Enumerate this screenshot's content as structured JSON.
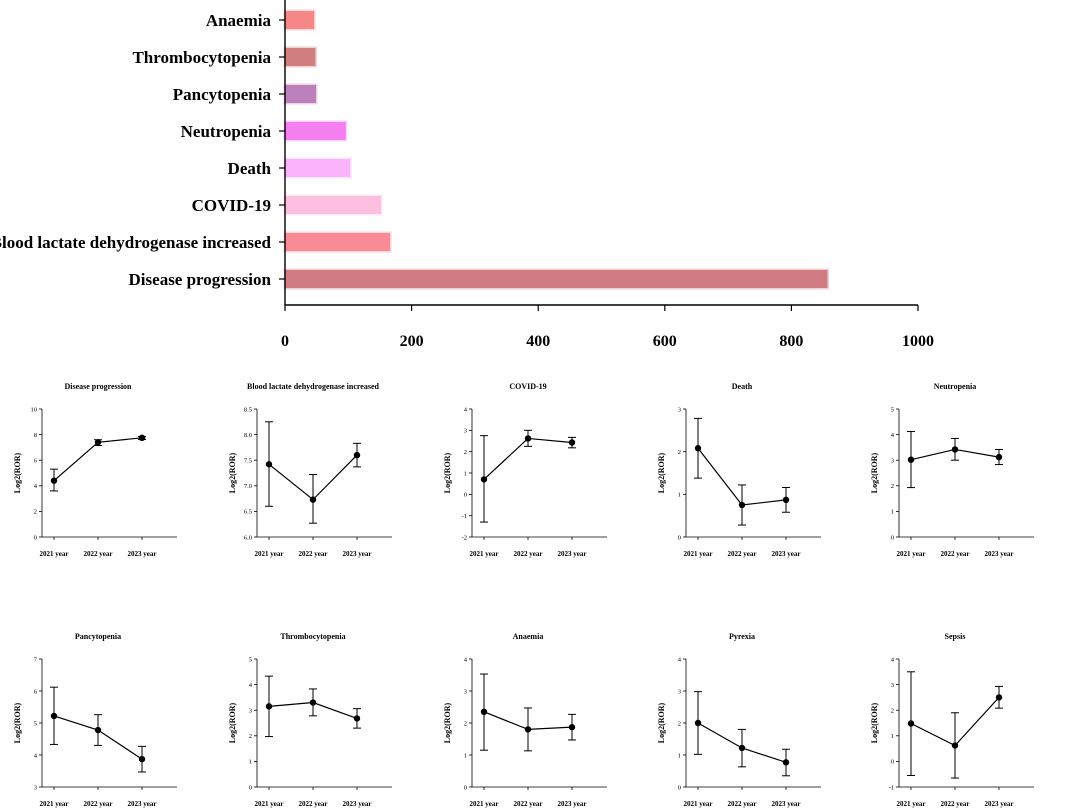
{
  "chart_data": [
    {
      "type": "bar",
      "orientation": "horizontal",
      "title": "",
      "categories": [
        "Anaemia",
        "Thrombocytopenia",
        "Pancytopenia",
        "Neutropenia",
        "Death",
        "COVID-19",
        "Blood lactate dehydrogenase increased",
        "Disease progression"
      ],
      "values": [
        46,
        48,
        49,
        96,
        103,
        152,
        166,
        857
      ],
      "colors": [
        "#f58787",
        "#d27f7f",
        "#bc80bd",
        "#f57ef0",
        "#fbb3fb",
        "#fcbfe0",
        "#f98b96",
        "#d17b82"
      ],
      "xlim": [
        0,
        1000
      ],
      "xticks": [
        "0",
        "200",
        "400",
        "600",
        "800",
        "1000"
      ]
    },
    {
      "type": "line",
      "title": "Disease progression",
      "ylabel": "Log2(ROR)",
      "categories": [
        "2021 year",
        "2022 year",
        "2023 year"
      ],
      "values": [
        4.4,
        7.4,
        7.75
      ],
      "error_low": [
        3.6,
        7.15,
        7.62
      ],
      "error_high": [
        5.3,
        7.6,
        7.85
      ],
      "ylim": [
        0,
        10
      ],
      "yticks": [
        "0",
        "2",
        "4",
        "6",
        "8",
        "10"
      ]
    },
    {
      "type": "line",
      "title": "Blood lactate dehydrogenase increased",
      "ylabel": "Log2(ROR)",
      "categories": [
        "2021 year",
        "2022 year",
        "2023 year"
      ],
      "values": [
        7.42,
        6.73,
        7.6
      ],
      "error_low": [
        6.6,
        6.27,
        7.37
      ],
      "error_high": [
        8.25,
        7.22,
        7.83
      ],
      "ylim": [
        6.0,
        8.5
      ],
      "yticks": [
        "6.0",
        "6.5",
        "7.0",
        "7.5",
        "8.0",
        "8.5"
      ]
    },
    {
      "type": "line",
      "title": "COVID-19",
      "ylabel": "Log2(ROR)",
      "categories": [
        "2021 year",
        "2022 year",
        "2023 year"
      ],
      "values": [
        0.7,
        2.62,
        2.43
      ],
      "error_low": [
        -1.3,
        2.25,
        2.18
      ],
      "error_high": [
        2.75,
        3.0,
        2.67
      ],
      "ylim": [
        -2,
        4
      ],
      "yticks": [
        "-2",
        "-1",
        "0",
        "1",
        "2",
        "3",
        "4"
      ]
    },
    {
      "type": "line",
      "title": "Death",
      "ylabel": "Log2(ROR)",
      "categories": [
        "2021 year",
        "2022 year",
        "2023 year"
      ],
      "values": [
        2.08,
        0.75,
        0.87
      ],
      "error_low": [
        1.38,
        0.28,
        0.58
      ],
      "error_high": [
        2.78,
        1.22,
        1.16
      ],
      "ylim": [
        0,
        3
      ],
      "yticks": [
        "0",
        "1",
        "2",
        "3"
      ]
    },
    {
      "type": "line",
      "title": "Neutropenia",
      "ylabel": "Log2(ROR)",
      "categories": [
        "2021 year",
        "2022 year",
        "2023 year"
      ],
      "values": [
        3.02,
        3.42,
        3.12
      ],
      "error_low": [
        1.93,
        3.0,
        2.83
      ],
      "error_high": [
        4.12,
        3.85,
        3.42
      ],
      "ylim": [
        0,
        5
      ],
      "yticks": [
        "0",
        "1",
        "2",
        "3",
        "4",
        "5"
      ]
    },
    {
      "type": "line",
      "title": "Pancytopenia",
      "ylabel": "Log2(ROR)",
      "categories": [
        "2021 year",
        "2022 year",
        "2023 year"
      ],
      "values": [
        5.22,
        4.78,
        3.87
      ],
      "error_low": [
        4.33,
        4.3,
        3.47
      ],
      "error_high": [
        6.12,
        5.26,
        4.27
      ],
      "ylim": [
        3,
        7
      ],
      "yticks": [
        "3",
        "4",
        "5",
        "6",
        "7"
      ]
    },
    {
      "type": "line",
      "title": "Thrombocytopenia",
      "ylabel": "Log2(ROR)",
      "categories": [
        "2021 year",
        "2022 year",
        "2023 year"
      ],
      "values": [
        3.15,
        3.3,
        2.68
      ],
      "error_low": [
        1.97,
        2.78,
        2.3
      ],
      "error_high": [
        4.33,
        3.83,
        3.06
      ],
      "ylim": [
        0,
        5
      ],
      "yticks": [
        "0",
        "1",
        "2",
        "3",
        "4",
        "5"
      ]
    },
    {
      "type": "line",
      "title": "Anaemia",
      "ylabel": "Log2(ROR)",
      "categories": [
        "2021 year",
        "2022 year",
        "2023 year"
      ],
      "values": [
        2.35,
        1.8,
        1.87
      ],
      "error_low": [
        1.15,
        1.13,
        1.47
      ],
      "error_high": [
        3.53,
        2.47,
        2.27
      ],
      "ylim": [
        0,
        4
      ],
      "yticks": [
        "0",
        "1",
        "2",
        "3",
        "4"
      ]
    },
    {
      "type": "line",
      "title": "Pyrexia",
      "ylabel": "Log2(ROR)",
      "categories": [
        "2021 year",
        "2022 year",
        "2023 year"
      ],
      "values": [
        2.0,
        1.22,
        0.77
      ],
      "error_low": [
        1.02,
        0.63,
        0.35
      ],
      "error_high": [
        2.98,
        1.8,
        1.18
      ],
      "ylim": [
        0,
        4
      ],
      "yticks": [
        "0",
        "1",
        "2",
        "3",
        "4"
      ]
    },
    {
      "type": "line",
      "title": "Sepsis",
      "ylabel": "Log2(ROR)",
      "categories": [
        "2021 year",
        "2022 year",
        "2023 year"
      ],
      "values": [
        1.48,
        0.62,
        2.5
      ],
      "error_low": [
        -0.55,
        -0.65,
        2.08
      ],
      "error_high": [
        3.5,
        1.9,
        2.93
      ],
      "ylim": [
        -1,
        4
      ],
      "yticks": [
        "-1",
        "0",
        "1",
        "2",
        "3",
        "4"
      ]
    }
  ]
}
